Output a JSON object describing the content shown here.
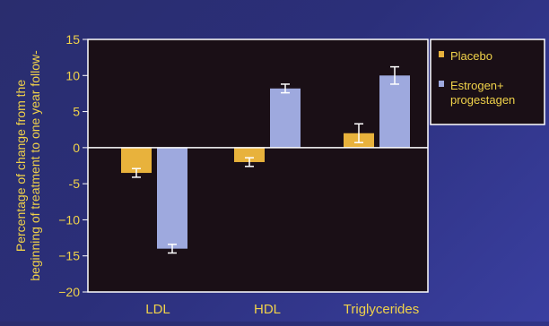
{
  "chart_data": {
    "type": "bar",
    "ylabel_lines": [
      "Percentage of change from the",
      "beginning of treatment to one year follow-"
    ],
    "categories": [
      "LDL",
      "HDL",
      "Triglycerides"
    ],
    "ylim": [
      -20,
      15
    ],
    "yticks": [
      15,
      10,
      5,
      0,
      -5,
      -10,
      -15,
      -20
    ],
    "ytick_labels": [
      "15",
      "10",
      "5",
      "0",
      "-5",
      "−10",
      "−15",
      "−20"
    ],
    "grid": false,
    "legend_position": "right",
    "series": [
      {
        "name": "Placebo",
        "color": "#e8b23c",
        "values": [
          -3.5,
          -2.0,
          2.0
        ],
        "err": [
          0.6,
          0.6,
          1.3
        ]
      },
      {
        "name": "Estrogen+\nprogestagen",
        "name_lines": [
          "Estrogen+",
          "progestagen"
        ],
        "color": "#9ea9de",
        "values": [
          -14.0,
          8.2,
          10.0
        ],
        "err": [
          0.6,
          0.6,
          1.2
        ]
      }
    ]
  },
  "colors": {
    "text": "#f0d24a",
    "plot_bg": "#1a0f16",
    "frame": "#ffffff"
  }
}
